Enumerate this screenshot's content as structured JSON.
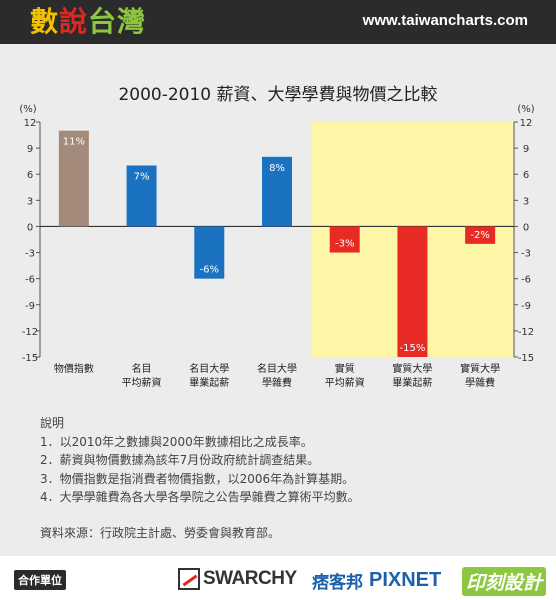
{
  "header": {
    "brand": [
      "數",
      "說",
      "台",
      "灣"
    ],
    "url": "www.taiwancharts.com"
  },
  "chart_data": {
    "type": "bar",
    "title": "2000-2010 薪資、大學學費與物價之比較",
    "unit_left": "(%)",
    "unit_right": "(%)",
    "ylim": [
      -15,
      12
    ],
    "yticks": [
      12,
      9,
      6,
      3,
      0,
      -3,
      -6,
      -9,
      -12,
      -15
    ],
    "categories": [
      [
        "物價指數"
      ],
      [
        "名目",
        "平均薪資"
      ],
      [
        "名目大學",
        "畢業起薪"
      ],
      [
        "名目大學",
        "學雜費"
      ],
      [
        "實質",
        "平均薪資"
      ],
      [
        "實質大學",
        "畢業起薪"
      ],
      [
        "實質大學",
        "學雜費"
      ]
    ],
    "values": [
      11,
      7,
      -6,
      8,
      -3,
      -15,
      -2
    ],
    "value_labels": [
      "11%",
      "7%",
      "-6%",
      "8%",
      "-3%",
      "-15%",
      "-2%"
    ],
    "colors": [
      "#a38a7a",
      "#1a72c0",
      "#1a72c0",
      "#1a72c0",
      "#e82a24",
      "#e82a24",
      "#e82a24"
    ],
    "highlight_color": "#fdf6a6",
    "highlight_from_index": 4,
    "grid": false
  },
  "notes": {
    "heading": "說明",
    "items": [
      "1．以2010年之數據與2000年數據相比之成長率。",
      "2．薪資與物價數據為該年7月份政府統計調查結果。",
      "3．物價指數是指消費者物價指數，以2006年為計算基期。",
      "4．大學學雜費為各大學各學院之公告學雜費之算術平均數。"
    ],
    "source": "資料來源：行政院主計處、勞委會與教育部。"
  },
  "footer": {
    "partner_label": "合作單位",
    "logos": [
      "SWARCHY",
      "痞客邦",
      "PIXNET",
      "印刻設計"
    ]
  }
}
